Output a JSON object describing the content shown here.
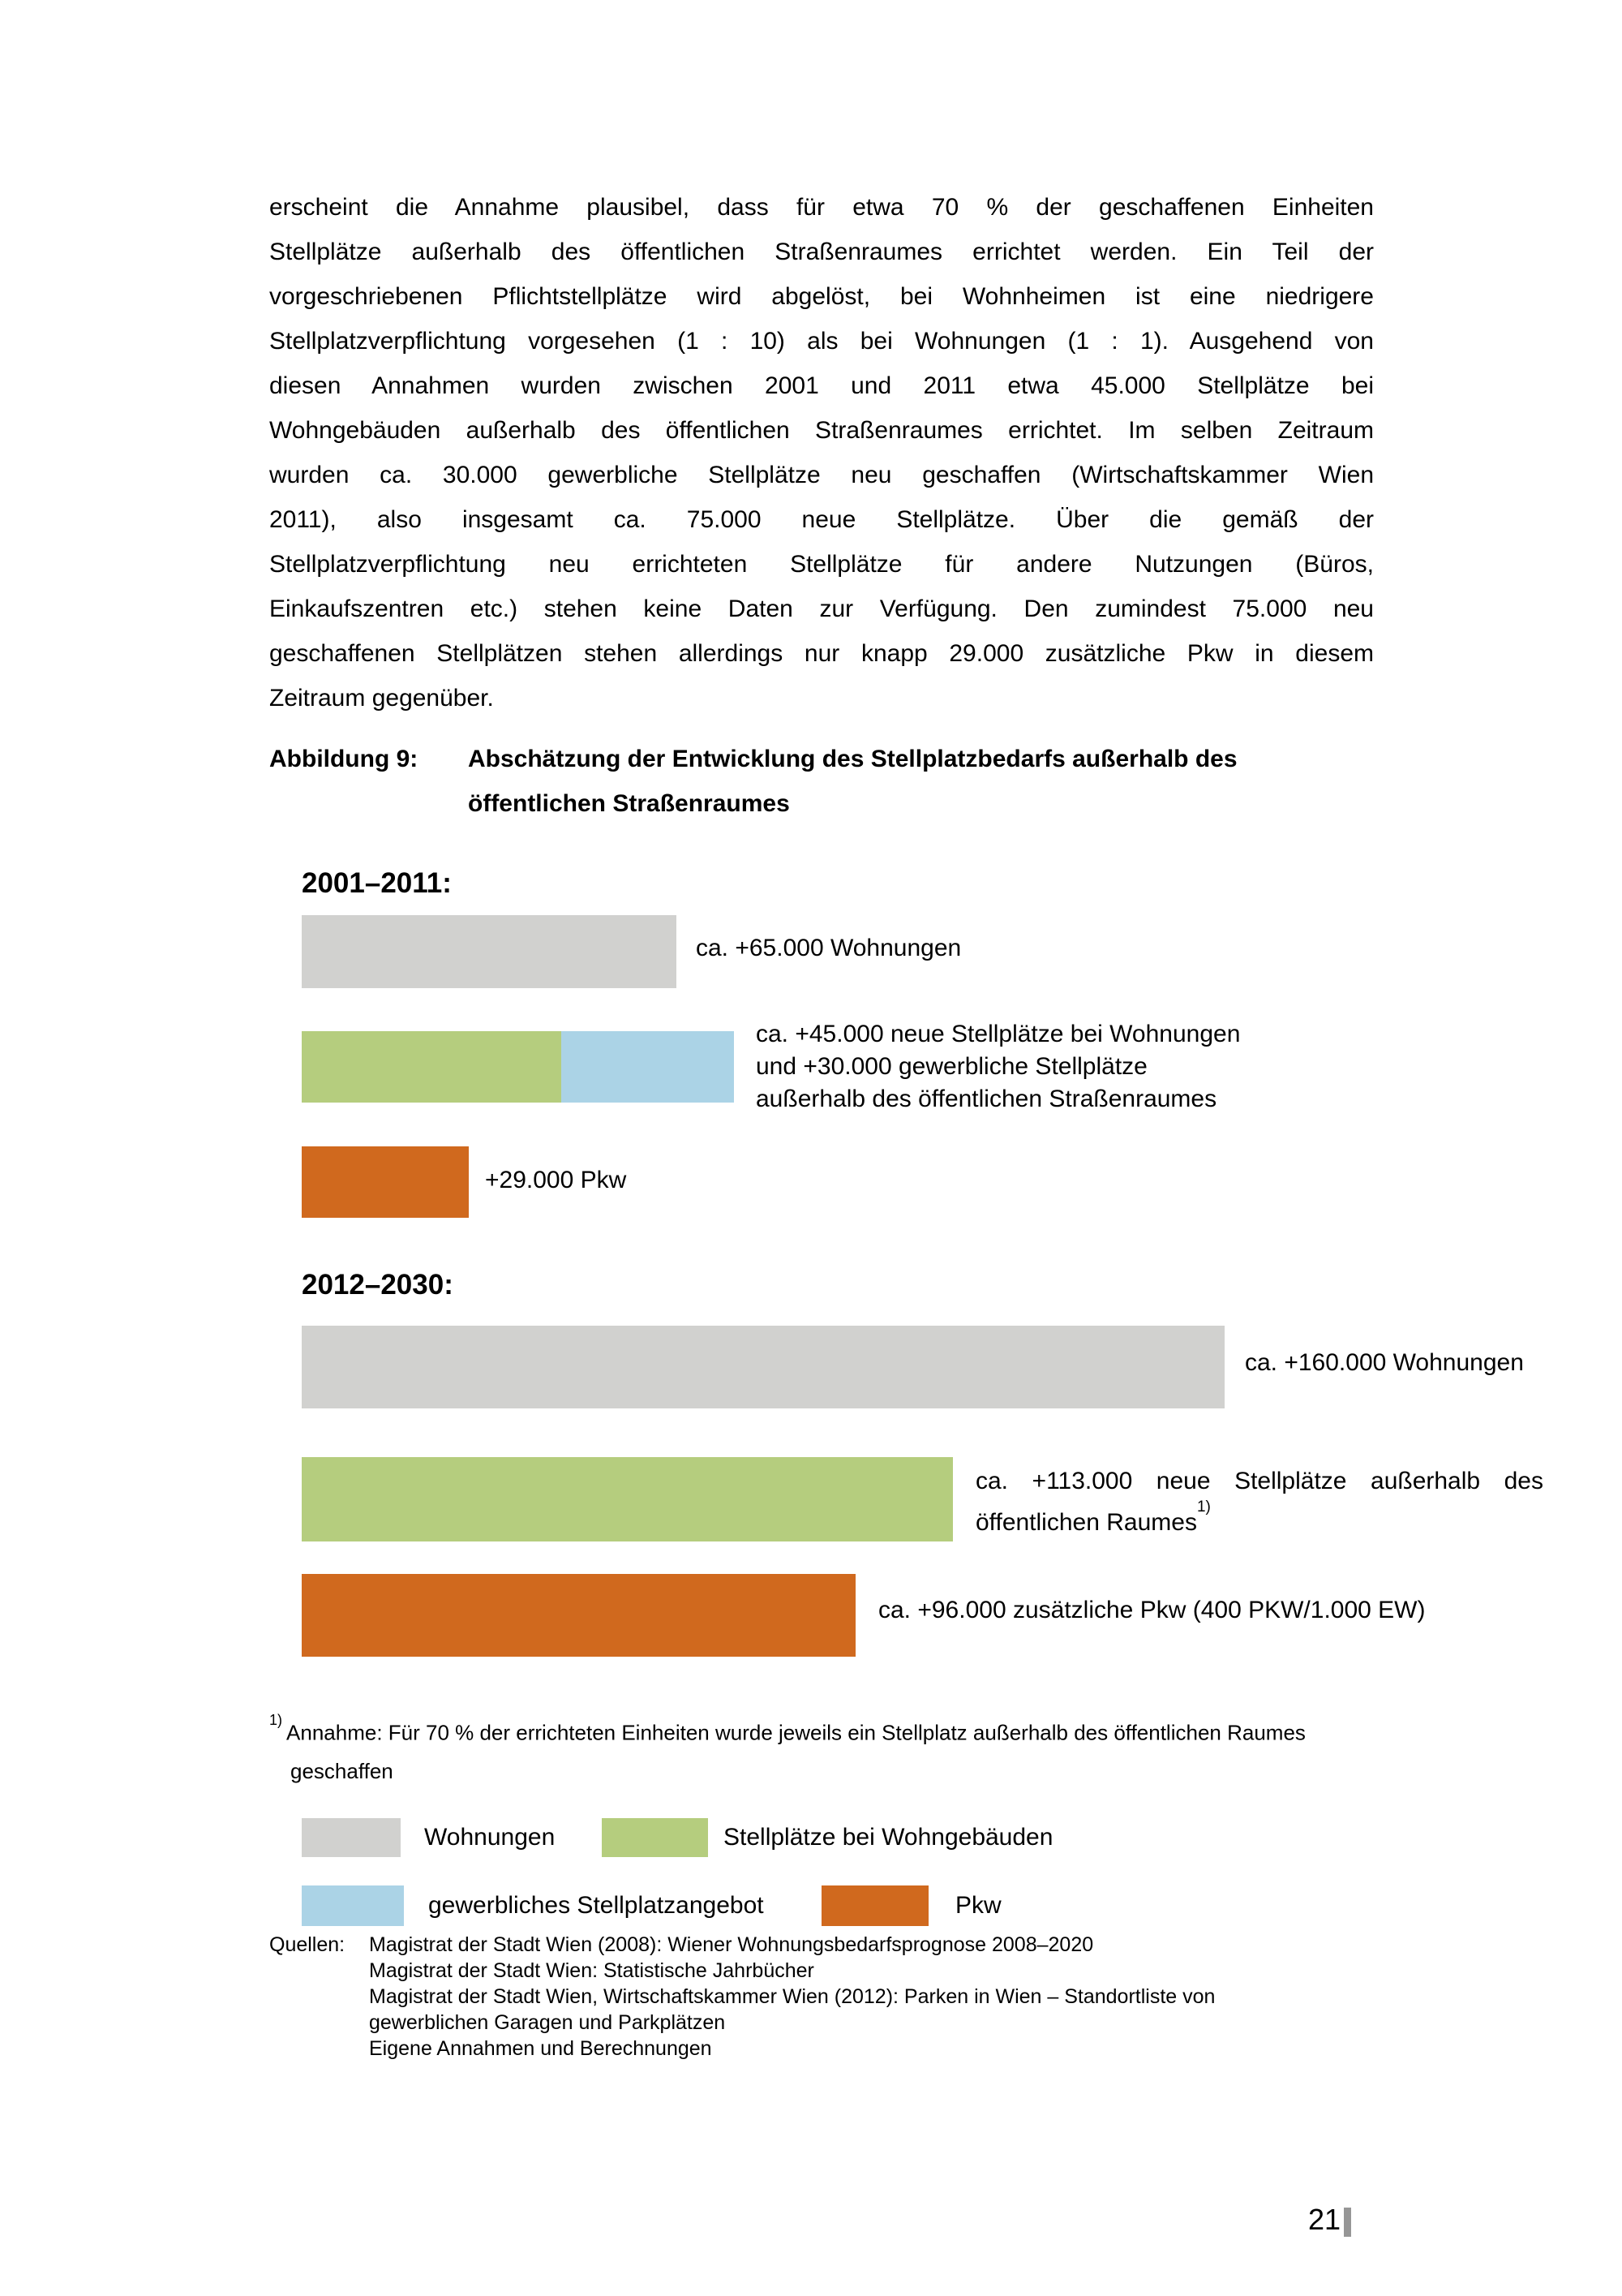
{
  "colors": {
    "wohnungen": "#d1d1cf",
    "stellplaetze_bei_wohngebaeuden": "#b5cd7e",
    "gewerbliches_stellplatzangebot": "#abd3e6",
    "pkw": "#d0691e",
    "page_marker": "#969696"
  },
  "paragraph": {
    "lines": [
      "erscheint die Annahme plausibel, dass für etwa 70 % der geschaffenen Einheiten",
      "Stellplätze außerhalb des öffentlichen Straßenraumes errichtet werden. Ein Teil der",
      "vorgeschriebenen Pflichtstellplätze wird abgelöst, bei Wohnheimen ist eine niedrigere",
      "Stellplatzverpflichtung vorgesehen (1 : 10) als bei Wohnungen (1 : 1). Ausgehend von",
      "diesen Annahmen wurden zwischen 2001 und 2011 etwa 45.000 Stellplätze bei",
      "Wohngebäuden außerhalb des öffentlichen Straßenraumes errichtet. Im selben Zeitraum",
      "wurden ca. 30.000 gewerbliche Stellplätze neu geschaffen (Wirtschaftskammer Wien",
      "2011), also insgesamt ca. 75.000 neue Stellplätze. Über die gemäß der",
      "Stellplatzverpflichtung neu errichteten Stellplätze für andere Nutzungen (Büros,",
      "Einkaufszentren etc.) stehen keine Daten zur Verfügung. Den zumindest 75.000 neu",
      "geschaffenen Stellplätzen stehen allerdings nur knapp 29.000 zusätzliche Pkw in diesem",
      "Zeitraum gegenüber."
    ]
  },
  "figure": {
    "label": "Abbildung 9:",
    "title_lines": [
      "Abschätzung der Entwicklung des Stellplatzbedarfs außerhalb des",
      "öffentlichen Straßenraumes"
    ]
  },
  "chart_data": {
    "type": "bar",
    "orientation": "horizontal",
    "title": "Abschätzung der Entwicklung des Stellplatzbedarfs außerhalb des öffentlichen Straßenraumes",
    "xlabel": "",
    "ylabel": "",
    "grid": false,
    "legend_position": "bottom",
    "series_colors": {
      "Wohnungen": "#d1d1cf",
      "Stellplätze bei Wohngebäuden": "#b5cd7e",
      "gewerbliches Stellplatzangebot": "#abd3e6",
      "Pkw": "#d0691e"
    },
    "groups": [
      {
        "heading": "2001–2011:",
        "bars": [
          {
            "label_lines": [
              "ca. +65.000 Wohnungen"
            ],
            "segments": [
              {
                "series": "Wohnungen",
                "value": 65000
              }
            ]
          },
          {
            "label_lines": [
              "ca. +45.000 neue Stellplätze bei Wohnungen",
              "und +30.000 gewerbliche Stellplätze",
              "außerhalb des öffentlichen Straßenraumes"
            ],
            "segments": [
              {
                "series": "Stellplätze bei Wohngebäuden",
                "value": 45000
              },
              {
                "series": "gewerbliches Stellplatzangebot",
                "value": 30000
              }
            ]
          },
          {
            "label_lines": [
              "+29.000 Pkw"
            ],
            "segments": [
              {
                "series": "Pkw",
                "value": 29000
              }
            ]
          }
        ]
      },
      {
        "heading": "2012–2030:",
        "bars": [
          {
            "label_lines": [
              "ca. +160.000 Wohnungen"
            ],
            "segments": [
              {
                "series": "Wohnungen",
                "value": 160000
              }
            ]
          },
          {
            "label_lines": [
              "ca. +113.000 neue Stellplätze außerhalb des",
              "öffentlichen Raumes"
            ],
            "label_sup": "1)",
            "justify_first_line": true,
            "segments": [
              {
                "series": "Stellplätze bei Wohngebäuden",
                "value": 113000
              }
            ]
          },
          {
            "label_lines": [
              "ca. +96.000 zusätzliche Pkw (400 PKW/1.000 EW)"
            ],
            "segments": [
              {
                "series": "Pkw",
                "value": 96000
              }
            ]
          }
        ]
      }
    ]
  },
  "footnote": {
    "sup": "1)",
    "line1": "Annahme: Für 70 % der errichteten Einheiten wurde jeweils ein Stellplatz außerhalb des öffentlichen Raumes",
    "line2": "geschaffen"
  },
  "legend": {
    "items": [
      {
        "series": "Wohnungen",
        "label": "Wohnungen"
      },
      {
        "series": "Stellplätze bei Wohngebäuden",
        "label": "Stellplätze bei Wohngebäuden"
      },
      {
        "series": "gewerbliches Stellplatzangebot",
        "label": "gewerbliches Stellplatzangebot"
      },
      {
        "series": "Pkw",
        "label": "Pkw"
      }
    ]
  },
  "sources": {
    "label": "Quellen:",
    "lines": [
      "Magistrat der Stadt Wien (2008): Wiener Wohnungsbedarfsprognose 2008–2020",
      "Magistrat der Stadt Wien: Statistische Jahrbücher",
      "Magistrat der Stadt Wien, Wirtschaftskammer Wien (2012): Parken in Wien – Standortliste von",
      "gewerblichen Garagen und Parkplätzen",
      "Eigene Annahmen und Berechnungen"
    ]
  },
  "page": {
    "number": "21"
  }
}
